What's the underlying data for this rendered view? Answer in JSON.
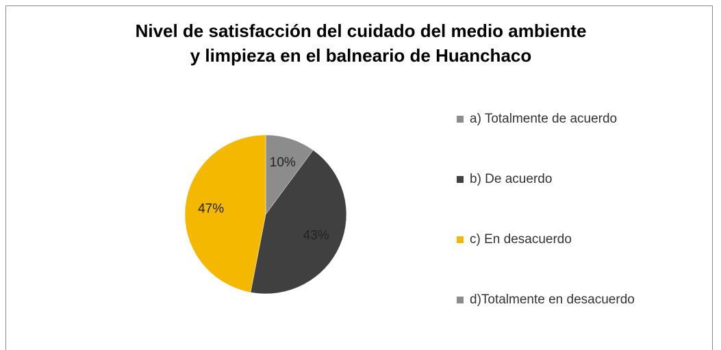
{
  "chart_data": {
    "type": "pie",
    "title": "Nivel de satisfacción del cuidado del medio ambiente",
    "subtitle": "y limpieza en el balneario de Huanchaco",
    "categories": [
      "a) Totalmente de acuerdo",
      "b) De acuerdo",
      "c) En desacuerdo",
      "d)Totalmente en desacuerdo"
    ],
    "values": [
      10,
      43,
      47,
      0
    ],
    "value_labels": [
      "10%",
      "43%",
      "47%",
      null
    ],
    "colors": [
      "#8c8c8c",
      "#404040",
      "#f5b800",
      "#8c8c8c"
    ],
    "legend": "right"
  }
}
